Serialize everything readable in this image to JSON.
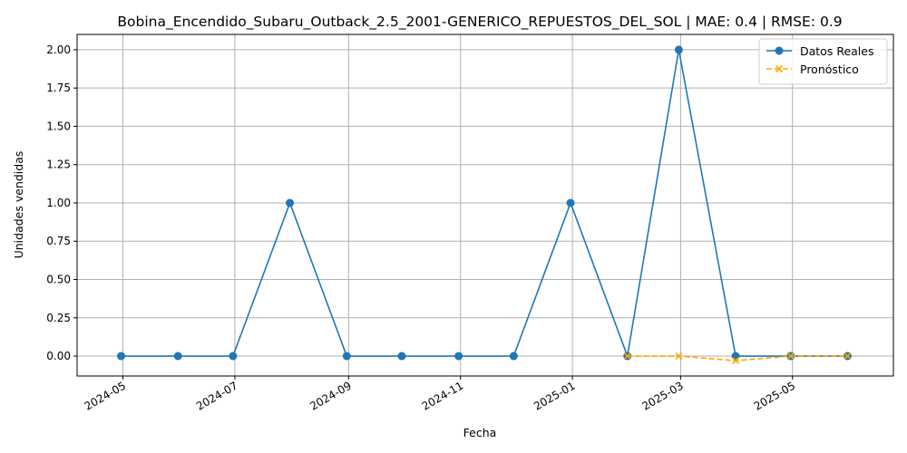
{
  "chart_data": {
    "type": "line",
    "title": "Bobina_Encendido_Subaru_Outback_2.5_2001-GENERICO_REPUESTOS_DEL_SOL | MAE: 0.4 | RMSE: 0.9",
    "xlabel": "Fecha",
    "ylabel": "Unidades vendidas",
    "xlim": [
      "2024-04-06",
      "2025-06-25"
    ],
    "ylim": [
      -0.13,
      2.1
    ],
    "grid": true,
    "legend_position": "top-right",
    "x_ticks": [
      "2024-05-01",
      "2024-07-01",
      "2024-09-01",
      "2024-11-01",
      "2025-01-01",
      "2025-03-01",
      "2025-05-01"
    ],
    "x_tick_labels": [
      "2024-05",
      "2024-07",
      "2024-09",
      "2024-11",
      "2025-01",
      "2025-03",
      "2025-05"
    ],
    "y_ticks": [
      0.0,
      0.25,
      0.5,
      0.75,
      1.0,
      1.25,
      1.5,
      1.75,
      2.0
    ],
    "y_tick_labels": [
      "0.00",
      "0.25",
      "0.50",
      "0.75",
      "1.00",
      "1.25",
      "1.50",
      "1.75",
      "2.00"
    ],
    "series": [
      {
        "name": "Datos Reales",
        "color": "#1f77b4",
        "line_style": "solid",
        "marker": "circle",
        "x": [
          "2024-04-30",
          "2024-05-31",
          "2024-06-30",
          "2024-07-31",
          "2024-08-31",
          "2024-09-30",
          "2024-10-31",
          "2024-11-30",
          "2024-12-31",
          "2025-01-31",
          "2025-02-28",
          "2025-03-31",
          "2025-04-30",
          "2025-05-31"
        ],
        "values": [
          0,
          0,
          0,
          1,
          0,
          0,
          0,
          0,
          1,
          0,
          2,
          0,
          0,
          0
        ]
      },
      {
        "name": "Pronóstico",
        "color": "#ffa500",
        "line_style": "dashed",
        "marker": "x",
        "x": [
          "2025-01-31",
          "2025-02-28",
          "2025-03-31",
          "2025-04-30",
          "2025-05-31"
        ],
        "values": [
          0.0,
          0.0,
          -0.03,
          0.0,
          0.0
        ]
      }
    ]
  }
}
